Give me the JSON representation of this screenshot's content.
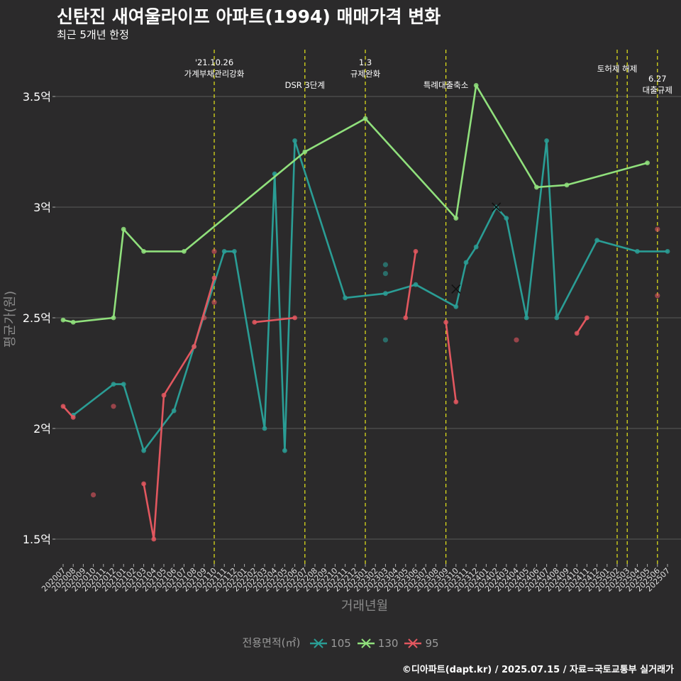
{
  "title": "신탄진 새여울라이프 아파트(1994) 매매가격 변화",
  "subtitle": "최근 5개년 한정",
  "caption": "©디아파트(dapt.kr) / 2025.07.15 / 자료=국토교통부 실거래가",
  "legend_title": "전용면적(㎡)",
  "chart_data": {
    "type": "line",
    "xlabel": "거래년월",
    "ylabel": "평균가(원)",
    "ylim": [
      1.4,
      3.65
    ],
    "y_ticks": [
      {
        "value": 1.5,
        "label": "1.5억"
      },
      {
        "value": 2.0,
        "label": "2억"
      },
      {
        "value": 2.5,
        "label": "2.5억"
      },
      {
        "value": 3.0,
        "label": "3억"
      },
      {
        "value": 3.5,
        "label": "3.5억"
      }
    ],
    "categories": [
      "202007",
      "202008",
      "202009",
      "202010",
      "202011",
      "202012",
      "202101",
      "202102",
      "202103",
      "202104",
      "202105",
      "202106",
      "202107",
      "202108",
      "202109",
      "202110",
      "202111",
      "202112",
      "202201",
      "202202",
      "202203",
      "202204",
      "202205",
      "202206",
      "202207",
      "202208",
      "202209",
      "202210",
      "202211",
      "202212",
      "202301",
      "202302",
      "202303",
      "202304",
      "202305",
      "202306",
      "202307",
      "202308",
      "202309",
      "202310",
      "202311",
      "202312",
      "202401",
      "202402",
      "202403",
      "202404",
      "202405",
      "202406",
      "202407",
      "202408",
      "202409",
      "202410",
      "202411",
      "202412",
      "202501",
      "202502",
      "202503",
      "202504",
      "202505",
      "202506",
      "202507"
    ],
    "tick_labels": [
      "202007",
      "202008",
      "202009",
      "202010",
      "202011",
      "202012",
      "202101",
      "202102",
      "202103",
      "202104",
      "202105",
      "202106",
      "202107",
      "202108",
      "202109",
      "202110",
      "202111",
      "202112",
      "202201",
      "202202",
      "202203",
      "202204",
      "202205",
      "202206",
      "202207",
      "202208",
      "202209",
      "202210",
      "202211",
      "202212",
      "202301",
      "202302",
      "202303",
      "202304",
      "202305",
      "202306",
      "202307",
      "202308",
      "202309",
      "202310",
      "202311",
      "202312",
      "202401",
      "202402",
      "202403",
      "202404",
      "202405",
      "202406",
      "202407",
      "202408",
      "202409",
      "202410",
      "202411",
      "202412",
      "202501",
      "202502",
      "202503",
      "202504",
      "202505",
      "202506",
      "202507"
    ],
    "series": [
      {
        "name": "105",
        "color": "#2a9d95",
        "line": [
          [
            "202008",
            2.06
          ],
          [
            "202012",
            2.2
          ],
          [
            "202101",
            2.2
          ],
          [
            "202103",
            1.9
          ],
          [
            "202106",
            2.08
          ],
          [
            "202108",
            2.37
          ],
          [
            "202111",
            2.8
          ],
          [
            "202112",
            2.8
          ],
          [
            "202203",
            2.0
          ],
          [
            "202204",
            3.15
          ],
          [
            "202205",
            1.9
          ],
          [
            "202206",
            3.3
          ],
          [
            "202211",
            2.59
          ],
          [
            "202303",
            2.61
          ],
          [
            "202306",
            2.65
          ],
          [
            "202310",
            2.55
          ],
          [
            "202311",
            2.75
          ],
          [
            "202312",
            2.82
          ],
          [
            "202402",
            3.0
          ],
          [
            "202403",
            2.95
          ],
          [
            "202405",
            2.5
          ],
          [
            "202407",
            3.3
          ],
          [
            "202408",
            2.5
          ],
          [
            "202412",
            2.85
          ],
          [
            "202504",
            2.8
          ],
          [
            "202507",
            2.8
          ]
        ],
        "points": [
          [
            "202303",
            2.74
          ],
          [
            "202303",
            2.7
          ],
          [
            "202303",
            2.4
          ]
        ],
        "last_marker": [
          "202402",
          3.0
        ]
      },
      {
        "name": "130",
        "color": "#90e07c",
        "line": [
          [
            "202007",
            2.49
          ],
          [
            "202008",
            2.48
          ],
          [
            "202012",
            2.5
          ],
          [
            "202101",
            2.9
          ],
          [
            "202103",
            2.8
          ],
          [
            "202107",
            2.8
          ],
          [
            "202207",
            3.25
          ],
          [
            "202301",
            3.4
          ],
          [
            "202310",
            2.95
          ],
          [
            "202312",
            3.55
          ],
          [
            "202406",
            3.09
          ],
          [
            "202409",
            3.1
          ],
          [
            "202505",
            3.2
          ]
        ],
        "points": [],
        "last_marker": null
      },
      {
        "name": "95",
        "color": "#e2575f",
        "line": [
          [
            "202007",
            2.1
          ],
          [
            "202008",
            2.05
          ]
        ],
        "segments": [
          [
            [
              "202103",
              1.75
            ],
            [
              "202104",
              1.5
            ],
            [
              "202105",
              2.15
            ],
            [
              "202108",
              2.37
            ],
            [
              "202110",
              2.68
            ]
          ],
          [
            [
              "202202",
              2.48
            ],
            [
              "202206",
              2.5
            ]
          ],
          [
            [
              "202305",
              2.5
            ],
            [
              "202306",
              2.8
            ]
          ],
          [
            [
              "202309",
              2.48
            ],
            [
              "202310",
              2.12
            ]
          ],
          [
            [
              "202410",
              2.43
            ],
            [
              "202411",
              2.5
            ]
          ]
        ],
        "points": [
          [
            "202010",
            1.7
          ],
          [
            "202012",
            2.1
          ],
          [
            "202109",
            2.5
          ],
          [
            "202110",
            2.8
          ],
          [
            "202110",
            2.57
          ],
          [
            "202404",
            2.4
          ],
          [
            "202506",
            2.9
          ],
          [
            "202506",
            2.6
          ]
        ],
        "last_marker": [
          "202310",
          2.63
        ]
      }
    ],
    "events": [
      {
        "x": "202110",
        "lines": [
          "'21.10.26",
          "가계부채관리강화"
        ]
      },
      {
        "x": "202207",
        "lines": [
          "DSR 3단계"
        ]
      },
      {
        "x": "202301",
        "lines": [
          "1.3",
          "규제완화"
        ]
      },
      {
        "x": "202309",
        "lines": [
          "특례대출축소"
        ]
      },
      {
        "x": "202502",
        "lines": [
          "토허제 해제"
        ]
      },
      {
        "x": "202503",
        "lines": []
      },
      {
        "x": "202506",
        "lines": [
          "6.27",
          "대출규제"
        ]
      }
    ],
    "event_line_color": "#e8e81a",
    "grid_color": "#5a5a5a",
    "axis_text_color": "#ffffff",
    "axis_title_color": "#8a8a8a"
  }
}
